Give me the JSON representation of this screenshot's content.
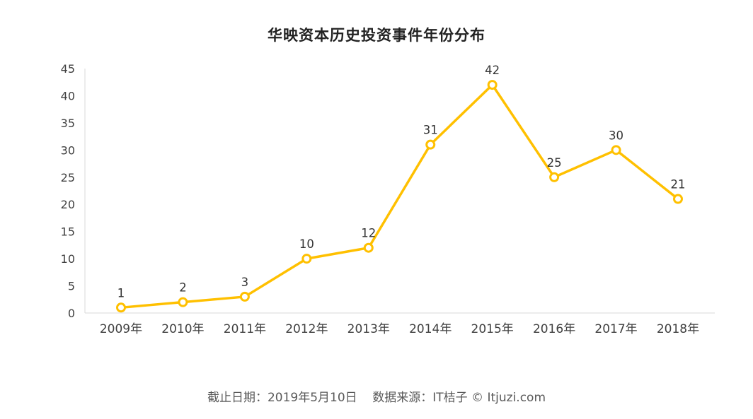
{
  "chart_data": {
    "type": "line",
    "title": "华映资本历史投资事件年份分布",
    "categories": [
      "2009年",
      "2010年",
      "2011年",
      "2012年",
      "2013年",
      "2014年",
      "2015年",
      "2016年",
      "2017年",
      "2018年"
    ],
    "values": [
      1,
      2,
      3,
      10,
      12,
      31,
      42,
      25,
      30,
      21
    ],
    "xlabel": "",
    "ylabel": "",
    "ylim": [
      0,
      45
    ],
    "ytick_step": 5,
    "yticks": [
      0,
      5,
      10,
      15,
      20,
      25,
      30,
      35,
      40,
      45
    ],
    "grid": false,
    "legend": "none",
    "data_labels": true,
    "colors": {
      "line": "#FFC000",
      "marker_fill": "#FFFFFF",
      "axis": "#D9D9D9",
      "tick_label": "#404040",
      "data_label": "#333333"
    }
  },
  "footer": {
    "text": "截止日期：2019年5月10日    数据来源：IT桔子 © Itjuzi.com"
  }
}
